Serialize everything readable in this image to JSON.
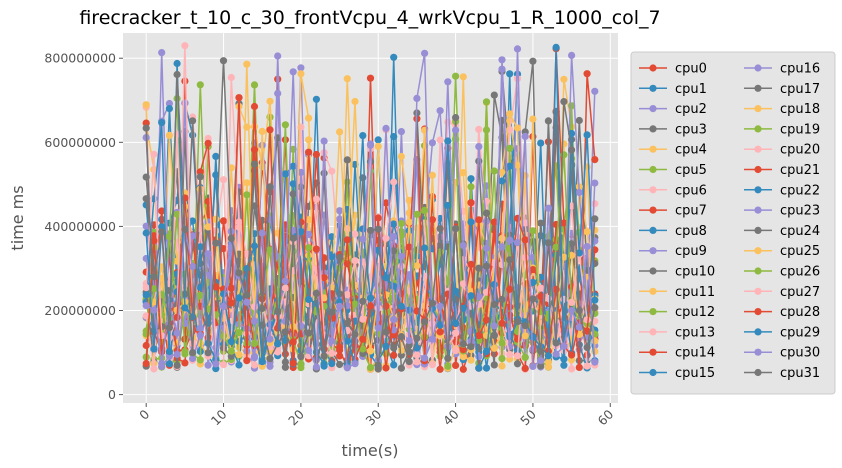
{
  "chart_data": {
    "type": "line",
    "title": "firecracker_t_10_c_30_frontVcpu_4_wrkVcpu_1_R_1000_col_7",
    "xlabel": "time(s)",
    "ylabel": "time ms",
    "xlim": [
      -3,
      61
    ],
    "ylim": [
      -20000000,
      860000000
    ],
    "xticks": [
      0,
      10,
      20,
      30,
      40,
      50,
      60
    ],
    "yticks": [
      0,
      200000000,
      400000000,
      600000000,
      800000000
    ],
    "xtick_labels": [
      "0",
      "10",
      "20",
      "30",
      "40",
      "50",
      "60"
    ],
    "ytick_labels": [
      "0",
      "200000000",
      "400000000",
      "600000000",
      "800000000"
    ],
    "grid": true,
    "legend_position": "right",
    "legend_columns": 2,
    "n_points": 59,
    "colors": [
      "#E24A33",
      "#348ABD",
      "#988ED5",
      "#777777",
      "#FBC15E",
      "#8EBA42",
      "#FFB5B8"
    ],
    "series_names": [
      "cpu0",
      "cpu1",
      "cpu2",
      "cpu3",
      "cpu4",
      "cpu5",
      "cpu6",
      "cpu7",
      "cpu8",
      "cpu9",
      "cpu10",
      "cpu11",
      "cpu12",
      "cpu13",
      "cpu14",
      "cpu15",
      "cpu16",
      "cpu17",
      "cpu18",
      "cpu19",
      "cpu20",
      "cpu21",
      "cpu22",
      "cpu23",
      "cpu24",
      "cpu25",
      "cpu26",
      "cpu27",
      "cpu28",
      "cpu29",
      "cpu30",
      "cpu31"
    ],
    "seed": 7
  }
}
